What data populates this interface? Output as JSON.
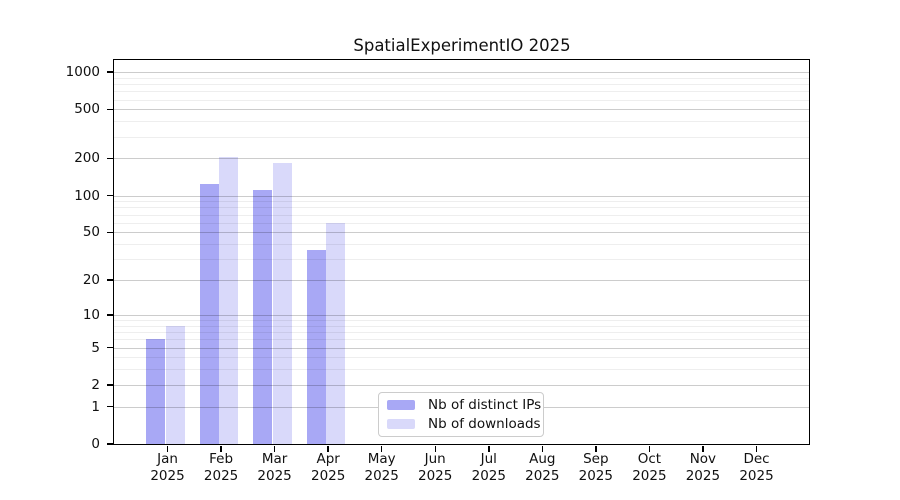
{
  "chart_data": {
    "type": "bar",
    "title": "SpatialExperimentIO 2025",
    "scale": "log1p",
    "categories": [
      "Jan",
      "Feb",
      "Mar",
      "Apr",
      "May",
      "Jun",
      "Jul",
      "Aug",
      "Sep",
      "Oct",
      "Nov",
      "Dec"
    ],
    "category_year": "2025",
    "series": [
      {
        "name": "Nb of distinct IPs",
        "color": "#a8a8f5",
        "values": [
          6,
          125,
          110,
          36,
          0,
          0,
          0,
          0,
          0,
          0,
          0,
          0
        ]
      },
      {
        "name": "Nb of downloads",
        "color": "#d9d9fa",
        "values": [
          8,
          205,
          185,
          60,
          0,
          0,
          0,
          0,
          0,
          0,
          0,
          0
        ]
      }
    ],
    "yticks": [
      0,
      1,
      2,
      5,
      10,
      20,
      50,
      100,
      200,
      500,
      1000
    ],
    "minor_yticks": [
      3,
      4,
      6,
      7,
      8,
      9,
      30,
      40,
      60,
      70,
      80,
      90,
      300,
      400,
      600,
      700,
      800,
      900
    ],
    "ylim": [
      0,
      1250
    ],
    "xlabel": "",
    "ylabel": "",
    "grid": "horizontal",
    "legend_position": "inside-bottom-center"
  },
  "colors": {
    "background": "#ffffff",
    "spine": "#000000",
    "major_grid": "#cbcbcb",
    "minor_grid": "#f0f0f0",
    "legend_border": "#cccccc",
    "text": "#111111"
  }
}
